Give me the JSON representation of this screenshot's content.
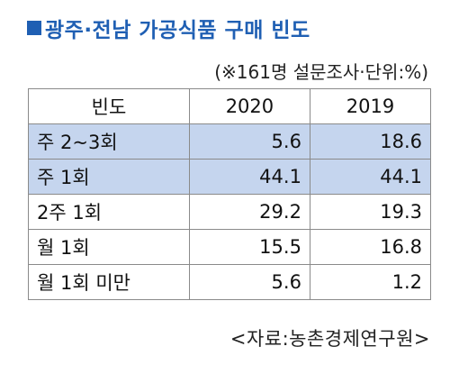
{
  "title": "광주·전남 가공식품 구매 빈도",
  "unit_note": "(※161명 설문조사·단위:%)",
  "source": "<자료:농촌경제연구원>",
  "colors": {
    "title": "#1f5fb3",
    "highlight_row": "#c5d5ee",
    "border": "#8a8a8a"
  },
  "chart_data": {
    "type": "table",
    "title": "광주·전남 가공식품 구매 빈도",
    "columns": [
      "빈도",
      "2020",
      "2019"
    ],
    "rows": [
      {
        "label": "주 2~3회",
        "values": [
          "5.6",
          "18.6"
        ],
        "highlight": true
      },
      {
        "label": "주 1회",
        "values": [
          "44.1",
          "44.1"
        ],
        "highlight": true
      },
      {
        "label": "2주 1회",
        "values": [
          "29.2",
          "19.3"
        ],
        "highlight": false
      },
      {
        "label": "월 1회",
        "values": [
          "15.5",
          "16.8"
        ],
        "highlight": false
      },
      {
        "label": "월 1회 미만",
        "values": [
          "5.6",
          "1.2"
        ],
        "highlight": false
      }
    ]
  }
}
